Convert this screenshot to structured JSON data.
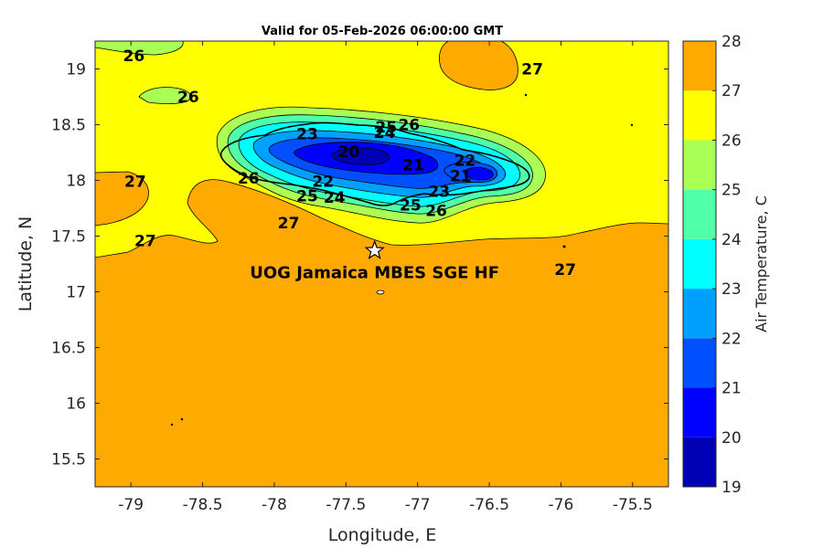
{
  "title": "Valid for 05-Feb-2026 06:00:00 GMT",
  "map": {
    "xlabel": "Longitude, E",
    "ylabel": "Latitude, N",
    "xlim": [
      -79.25,
      -75.25
    ],
    "ylim": [
      15.25,
      19.25
    ],
    "xticks": [
      "-79",
      "-78.5",
      "-78",
      "-77.5",
      "-77",
      "-76.5",
      "-76",
      "-75.5"
    ],
    "xtick_values": [
      -79,
      -78.5,
      -78,
      -77.5,
      -77,
      -76.5,
      -76,
      -75.5
    ],
    "yticks": [
      "15.5",
      "16",
      "16.5",
      "17",
      "17.5",
      "18",
      "18.5",
      "19"
    ],
    "ytick_values": [
      15.5,
      16,
      16.5,
      17,
      17.5,
      18,
      18.5,
      19
    ],
    "station": {
      "name": "UOG Jamaica MBES SGE HF",
      "lon": -77.3,
      "lat": 17.37
    },
    "contour_labels": [
      {
        "text": "26",
        "lon": -78.98,
        "lat": 19.12
      },
      {
        "text": "26",
        "lon": -78.6,
        "lat": 18.75
      },
      {
        "text": "27",
        "lon": -76.2,
        "lat": 19.0
      },
      {
        "text": "27",
        "lon": -78.97,
        "lat": 17.99
      },
      {
        "text": "26",
        "lon": -78.18,
        "lat": 18.02
      },
      {
        "text": "27",
        "lon": -77.9,
        "lat": 17.62
      },
      {
        "text": "27",
        "lon": -78.9,
        "lat": 17.46
      },
      {
        "text": "27",
        "lon": -75.97,
        "lat": 17.2
      },
      {
        "text": "23",
        "lon": -77.77,
        "lat": 18.42
      },
      {
        "text": "25",
        "lon": -77.22,
        "lat": 18.48
      },
      {
        "text": "26",
        "lon": -77.06,
        "lat": 18.5
      },
      {
        "text": "24",
        "lon": -77.23,
        "lat": 18.43
      },
      {
        "text": "20",
        "lon": -77.48,
        "lat": 18.26
      },
      {
        "text": "21",
        "lon": -77.03,
        "lat": 18.14
      },
      {
        "text": "22",
        "lon": -76.67,
        "lat": 18.18
      },
      {
        "text": "21",
        "lon": -76.7,
        "lat": 18.04
      },
      {
        "text": "22",
        "lon": -77.66,
        "lat": 17.99
      },
      {
        "text": "25",
        "lon": -77.77,
        "lat": 17.86
      },
      {
        "text": "24",
        "lon": -77.58,
        "lat": 17.85
      },
      {
        "text": "23",
        "lon": -76.85,
        "lat": 17.9
      },
      {
        "text": "25",
        "lon": -77.05,
        "lat": 17.78
      },
      {
        "text": "26",
        "lon": -76.87,
        "lat": 17.73
      }
    ]
  },
  "colorbar": {
    "label": "Air Temperature, C",
    "ticks": [
      "19",
      "20",
      "21",
      "22",
      "23",
      "24",
      "25",
      "26",
      "27",
      "28"
    ],
    "levels": [
      19,
      20,
      21,
      22,
      23,
      24,
      25,
      26,
      27,
      28
    ],
    "colors": [
      "#0000b4",
      "#0000ff",
      "#0050ff",
      "#00a0ff",
      "#00ffff",
      "#50ffaa",
      "#aaff55",
      "#ffff00",
      "#ffaa00",
      "#ff5500"
    ]
  }
}
